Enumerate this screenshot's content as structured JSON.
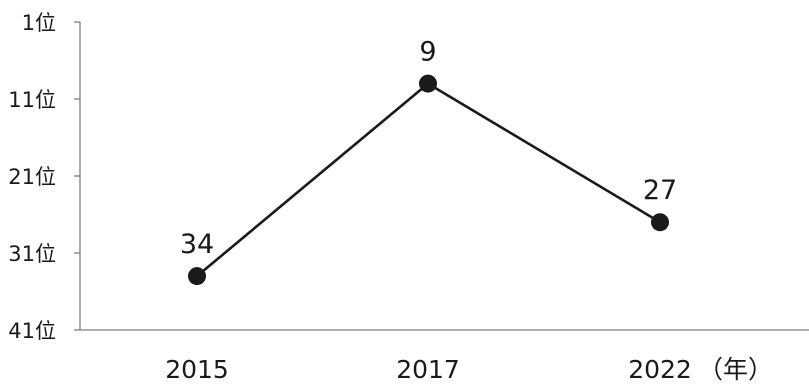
{
  "chart_data": {
    "type": "line",
    "y_axis": {
      "inverted": true,
      "ylim": [
        1,
        41
      ],
      "ticks": [
        1,
        11,
        21,
        31,
        41
      ],
      "tick_labels": [
        "1位",
        "11位",
        "21位",
        "31位",
        "41位"
      ]
    },
    "x_axis": {
      "categories": [
        "2015",
        "2017",
        "2022"
      ],
      "unit_suffix": "（年）"
    },
    "series": [
      {
        "values": [
          34,
          9,
          27
        ],
        "data_labels": [
          "34",
          "9",
          "27"
        ],
        "color": "#1a1a1a"
      }
    ],
    "grid": false,
    "legend": "none"
  }
}
